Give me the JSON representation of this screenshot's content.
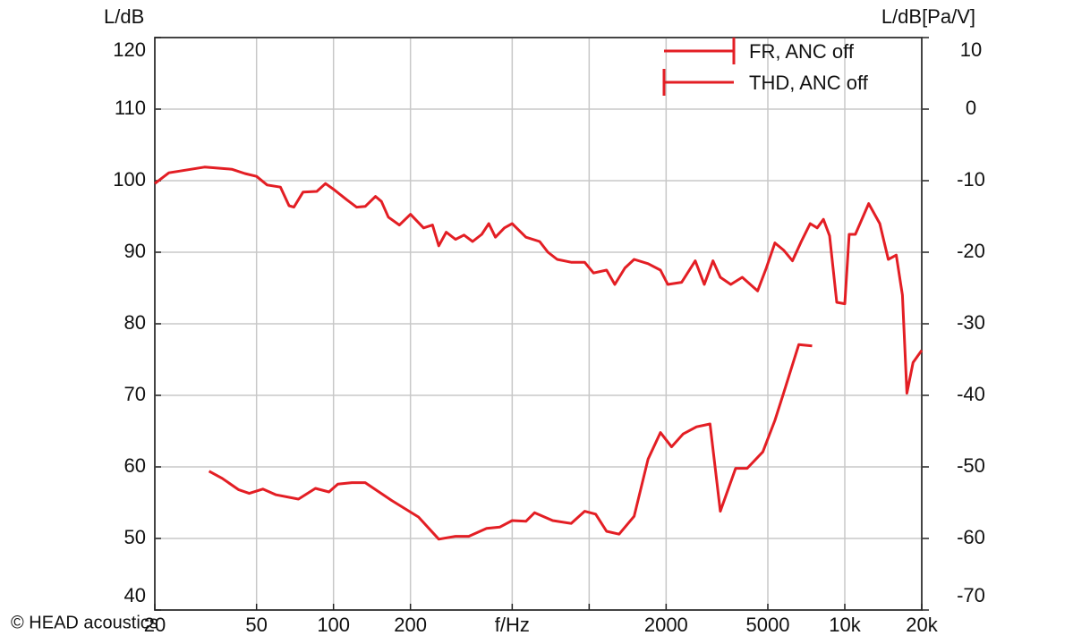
{
  "chart_data": {
    "type": "line",
    "ylabel": "L/dB",
    "y2label": "L/dB[Pa/V]",
    "watermark": "© HEAD acoustics",
    "xscale": "log",
    "grid": true,
    "legend": "top-right",
    "xlim": [
      20,
      20000
    ],
    "xticks": [
      20,
      50,
      100,
      200,
      {
        "value": 500,
        "label": "f/Hz"
      },
      {
        "value": 1000,
        "label": null
      },
      2000,
      5000,
      {
        "value": 10000,
        "label": "10k"
      },
      {
        "value": 20000,
        "label": "20k"
      }
    ],
    "ylim": [
      40,
      120
    ],
    "yticks": [
      40,
      50,
      60,
      70,
      80,
      90,
      100,
      110,
      120
    ],
    "y2lim": [
      -70,
      10
    ],
    "y2ticks": [
      -70,
      -60,
      -50,
      -40,
      -30,
      -20,
      -10,
      0,
      10
    ],
    "series": [
      {
        "name": "FR, ANC off",
        "color": "#e31e24",
        "x": [
          20,
          22.7,
          31.3,
          40,
          45,
          50,
          55,
          62,
          67,
          70,
          76,
          86,
          93,
          100,
          113,
          123,
          133,
          146,
          154,
          164,
          181,
          200,
          225,
          244,
          258,
          276,
          300,
          324,
          350,
          380,
          405,
          430,
          466,
          500,
          566,
          640,
          690,
          750,
          850,
          960,
          1040,
          1170,
          1260,
          1380,
          1500,
          1700,
          1900,
          2030,
          2300,
          2600,
          2820,
          3050,
          3260,
          3580,
          3970,
          4560,
          4930,
          5330,
          5760,
          6240,
          6760,
          7320,
          7800,
          8250,
          8720,
          9300,
          10000,
          10400,
          11000,
          12400,
          13700,
          14800,
          15900,
          16800,
          17500,
          18500,
          20000
        ],
        "values": [
          99.6,
          101.1,
          101.9,
          101.6,
          101,
          100.6,
          99.4,
          99.1,
          96.5,
          96.3,
          98.4,
          98.5,
          99.6,
          98.8,
          97.3,
          96.3,
          96.4,
          97.8,
          97.1,
          94.9,
          93.8,
          95.3,
          93.4,
          93.8,
          90.9,
          92.8,
          91.8,
          92.4,
          91.5,
          92.5,
          94,
          92.1,
          93.4,
          94,
          92.1,
          91.5,
          90,
          89,
          88.6,
          88.6,
          87.1,
          87.5,
          85.5,
          87.8,
          89,
          88.4,
          87.5,
          85.5,
          85.8,
          88.8,
          85.5,
          88.8,
          86.5,
          85.5,
          86.5,
          84.6,
          87.8,
          91.3,
          90.3,
          88.8,
          91.5,
          94,
          93.4,
          94.6,
          92.3,
          83,
          82.8,
          92.5,
          92.5,
          96.8,
          94,
          89,
          89.6,
          84,
          70.3,
          74.6,
          76.3
        ]
      },
      {
        "name": "THD, ANC off",
        "color": "#e31e24",
        "x": [
          32.6,
          36.7,
          42.6,
          46.8,
          52.9,
          59.6,
          72.9,
          85,
          96,
          104,
          118,
          133,
          169,
          215,
          258,
          300,
          338,
          397,
          448,
          500,
          566,
          612,
          720,
          850,
          960,
          1060,
          1170,
          1310,
          1500,
          1700,
          1900,
          2100,
          2330,
          2630,
          2970,
          3260,
          3740,
          4150,
          4780,
          5330,
          5760,
          6610,
          7450
        ],
        "values": [
          59.4,
          58.4,
          56.8,
          56.3,
          56.9,
          56.1,
          55.5,
          57,
          56.5,
          57.6,
          57.8,
          57.8,
          55.3,
          53,
          49.9,
          50.3,
          50.3,
          51.4,
          51.6,
          52.5,
          52.4,
          53.6,
          52.5,
          52.1,
          53.8,
          53.4,
          51,
          50.6,
          53.1,
          61.1,
          64.8,
          62.8,
          64.6,
          65.6,
          66,
          53.8,
          59.8,
          59.8,
          62.1,
          66.5,
          70.3,
          77.1,
          76.9
        ]
      }
    ]
  }
}
